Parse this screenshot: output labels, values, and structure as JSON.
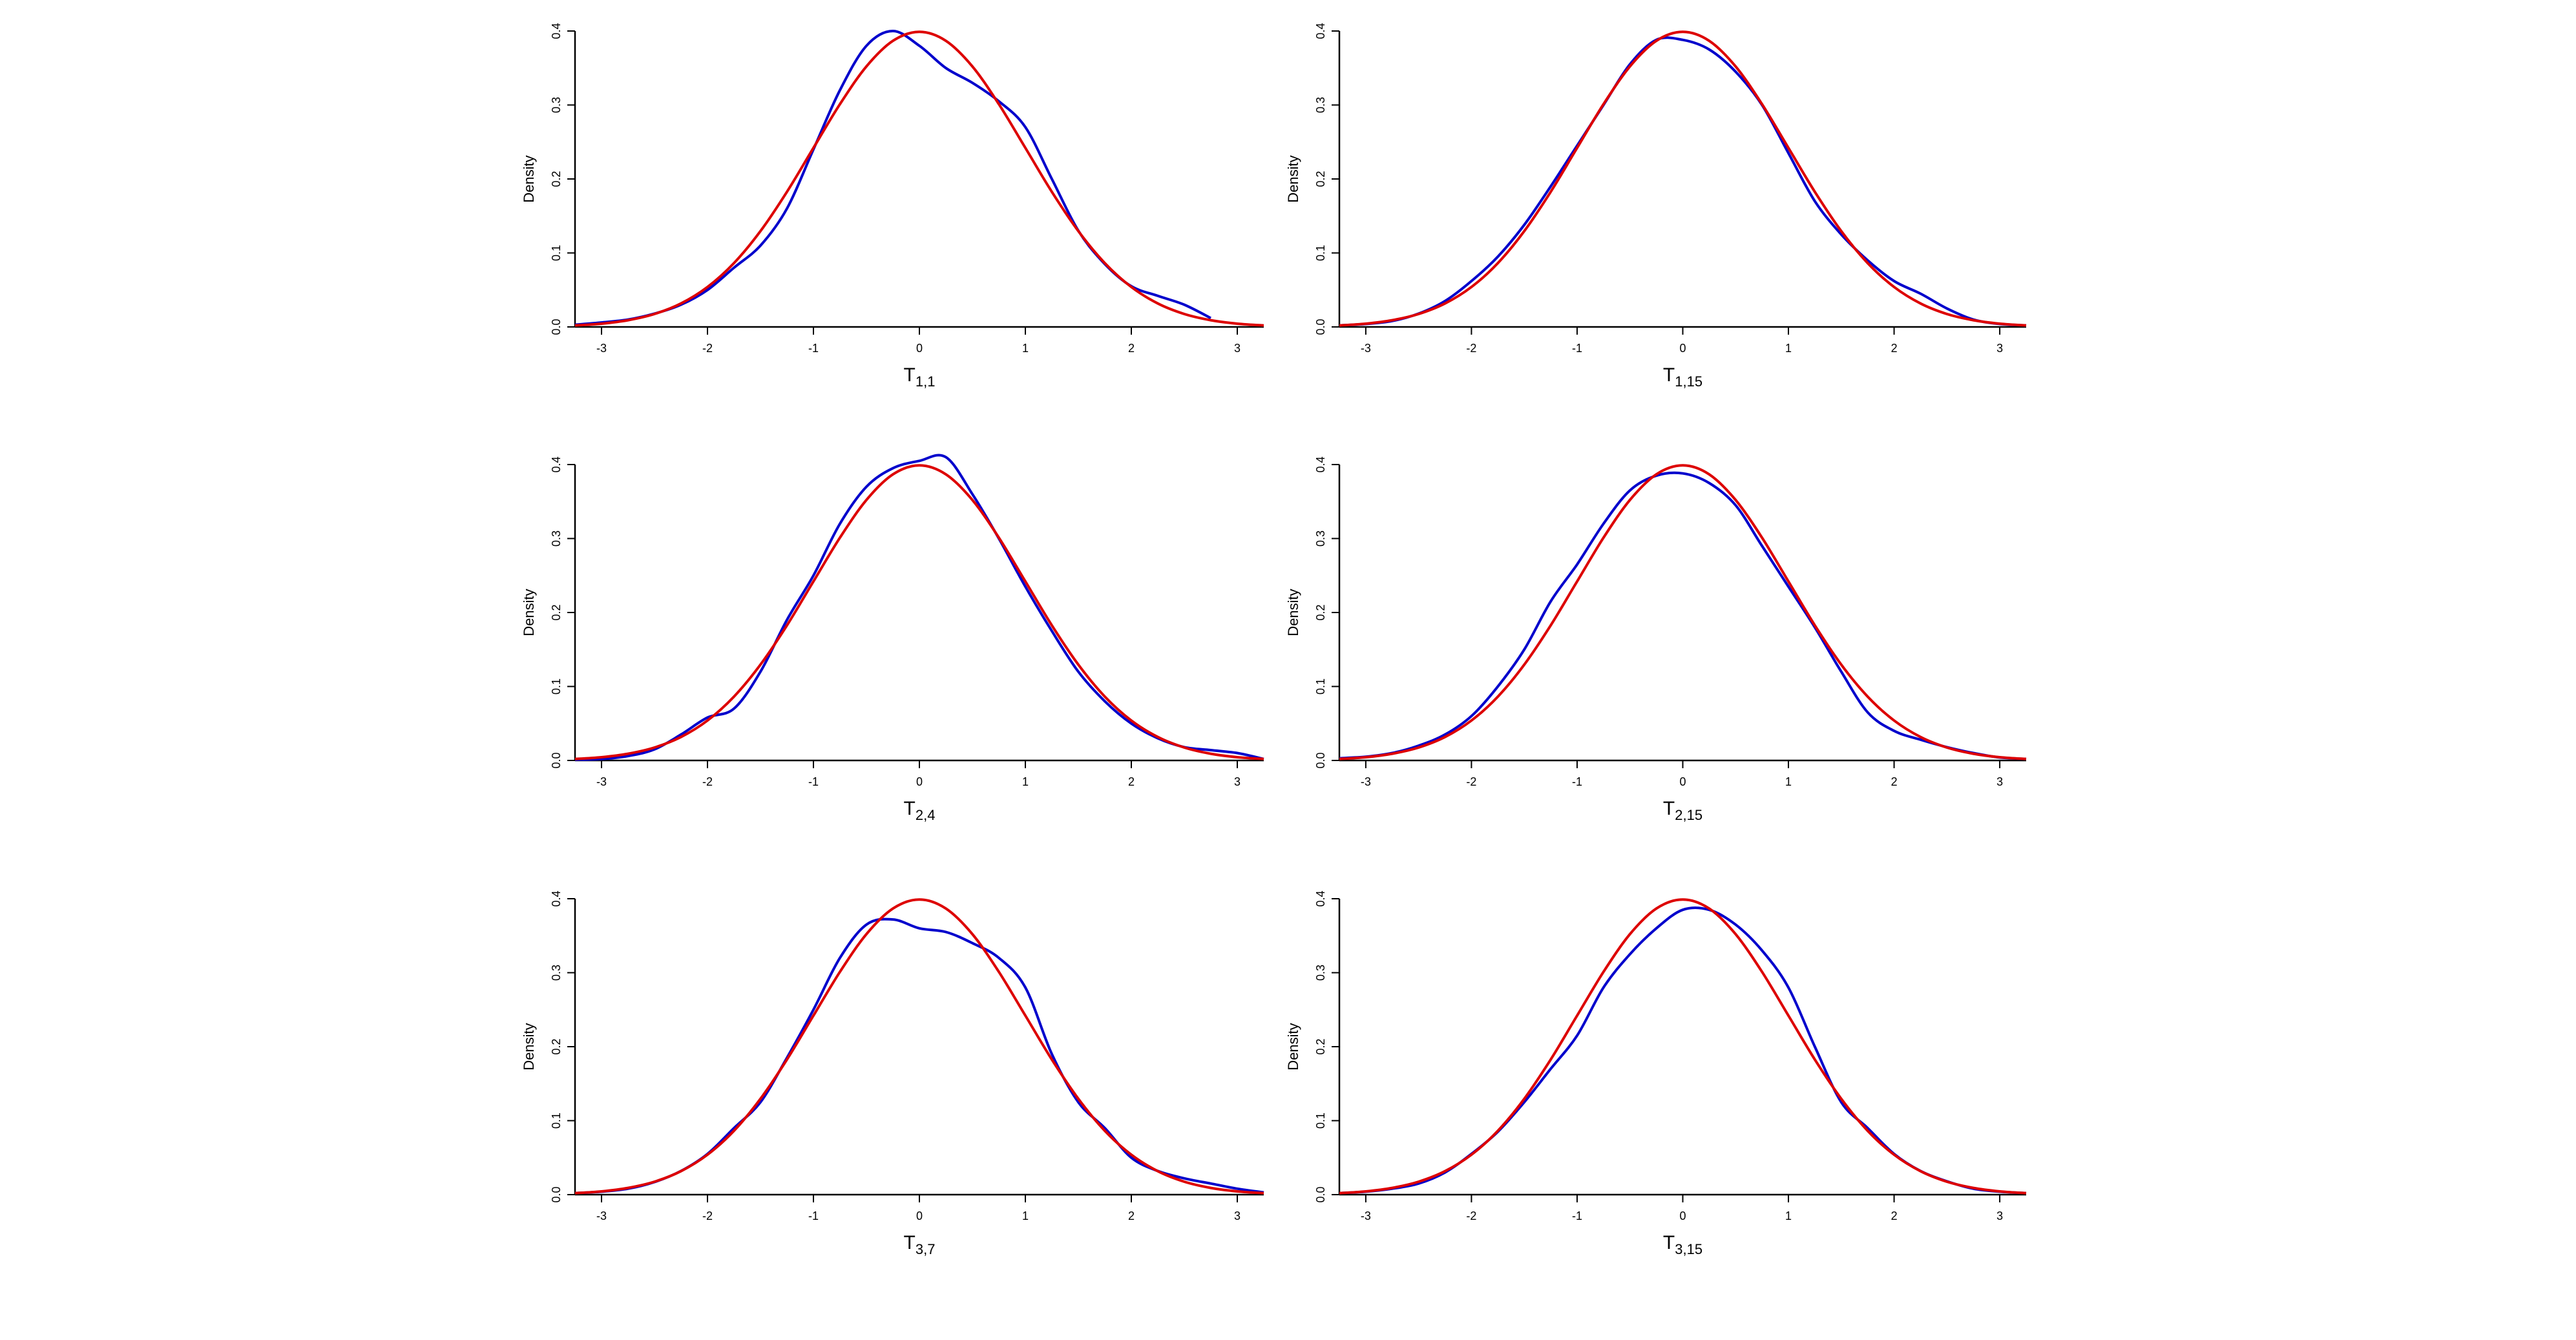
{
  "chart_data": [
    {
      "type": "line",
      "x_label": "T",
      "x_label_subscript": "1,1",
      "y_label": "Density",
      "x": [
        -3.25,
        -3,
        -2.75,
        -2.5,
        -2.25,
        -2,
        -1.75,
        -1.5,
        -1.25,
        -1,
        -0.75,
        -0.5,
        -0.25,
        0,
        0.25,
        0.5,
        0.75,
        1,
        1.25,
        1.5,
        1.75,
        2,
        2.25,
        2.5,
        2.75,
        3,
        3.25
      ],
      "series": [
        {
          "color": "#0000cc",
          "values": [
            0.003,
            0.006,
            0.01,
            0.018,
            0.03,
            0.05,
            0.08,
            0.11,
            0.16,
            0.24,
            0.32,
            0.38,
            0.4,
            0.38,
            0.35,
            0.33,
            0.305,
            0.27,
            0.2,
            0.13,
            0.085,
            0.055,
            0.042,
            0.03,
            0.012,
            null,
            null
          ]
        },
        {
          "color": "#dd0000",
          "values": [
            0.002,
            0.0044,
            0.0091,
            0.0175,
            0.0317,
            0.054,
            0.0863,
            0.1295,
            0.1826,
            0.242,
            0.3011,
            0.3521,
            0.3867,
            0.3989,
            0.3867,
            0.3521,
            0.3011,
            0.242,
            0.1826,
            0.1295,
            0.0863,
            0.054,
            0.0317,
            0.0175,
            0.0091,
            0.0044,
            0.002
          ]
        }
      ],
      "xlim": [
        -3.25,
        3.25
      ],
      "xticks": [
        -3,
        -2,
        -1,
        0,
        1,
        2,
        3
      ],
      "ylim": [
        0,
        0.4
      ],
      "yticks": [
        {
          "value": 0,
          "label": "0.0"
        },
        0.1,
        0.2,
        0.3,
        0.4
      ]
    },
    {
      "type": "line",
      "x_label": "T",
      "x_label_subscript": "1,15",
      "y_label": "Density",
      "x": [
        -3.25,
        -3,
        -2.75,
        -2.5,
        -2.25,
        -2,
        -1.75,
        -1.5,
        -1.25,
        -1,
        -0.75,
        -0.5,
        -0.25,
        0,
        0.25,
        0.5,
        0.75,
        1,
        1.25,
        1.5,
        1.75,
        2,
        2.25,
        2.5,
        2.75,
        3,
        3.25
      ],
      "series": [
        {
          "color": "#0000cc",
          "values": [
            0.002,
            0.004,
            0.008,
            0.018,
            0.035,
            0.062,
            0.095,
            0.138,
            0.19,
            0.245,
            0.3,
            0.355,
            0.388,
            0.388,
            0.375,
            0.345,
            0.3,
            0.235,
            0.17,
            0.125,
            0.09,
            0.062,
            0.045,
            0.025,
            0.01,
            0.004,
            0.002
          ]
        },
        {
          "color": "#dd0000",
          "values": [
            0.002,
            0.0044,
            0.0091,
            0.0175,
            0.0317,
            0.054,
            0.0863,
            0.1295,
            0.1826,
            0.242,
            0.3011,
            0.3521,
            0.3867,
            0.3989,
            0.3867,
            0.3521,
            0.3011,
            0.242,
            0.1826,
            0.1295,
            0.0863,
            0.054,
            0.0317,
            0.0175,
            0.0091,
            0.0044,
            0.002
          ]
        }
      ],
      "xlim": [
        -3.25,
        3.25
      ],
      "xticks": [
        -3,
        -2,
        -1,
        0,
        1,
        2,
        3
      ],
      "ylim": [
        0,
        0.4
      ],
      "yticks": [
        {
          "value": 0,
          "label": "0.0"
        },
        0.1,
        0.2,
        0.3,
        0.4
      ]
    },
    {
      "type": "line",
      "x_label": "T",
      "x_label_subscript": "2,4",
      "y_label": "Density",
      "x": [
        -3.25,
        -3,
        -2.75,
        -2.5,
        -2.25,
        -2,
        -1.75,
        -1.5,
        -1.25,
        -1,
        -0.75,
        -0.5,
        -0.25,
        0,
        0.25,
        0.5,
        0.75,
        1,
        1.25,
        1.5,
        1.75,
        2,
        2.25,
        2.5,
        2.75,
        3,
        3.25
      ],
      "series": [
        {
          "color": "#0000cc",
          "values": [
            0.001,
            0.002,
            0.006,
            0.015,
            0.035,
            0.058,
            0.07,
            0.12,
            0.19,
            0.25,
            0.32,
            0.37,
            0.395,
            0.405,
            0.41,
            0.36,
            0.3,
            0.235,
            0.175,
            0.12,
            0.08,
            0.05,
            0.03,
            0.018,
            0.014,
            0.01,
            0.002
          ]
        },
        {
          "color": "#dd0000",
          "values": [
            0.002,
            0.0044,
            0.0091,
            0.0175,
            0.0317,
            0.054,
            0.0863,
            0.1295,
            0.1826,
            0.242,
            0.3011,
            0.3521,
            0.3867,
            0.3989,
            0.3867,
            0.3521,
            0.3011,
            0.242,
            0.1826,
            0.1295,
            0.0863,
            0.054,
            0.0317,
            0.0175,
            0.0091,
            0.0044,
            0.002
          ]
        }
      ],
      "xlim": [
        -3.25,
        3.25
      ],
      "xticks": [
        -3,
        -2,
        -1,
        0,
        1,
        2,
        3
      ],
      "ylim": [
        0,
        0.4
      ],
      "yticks": [
        {
          "value": 0,
          "label": "0.0"
        },
        0.1,
        0.2,
        0.3,
        0.4
      ]
    },
    {
      "type": "line",
      "x_label": "T",
      "x_label_subscript": "2,15",
      "y_label": "Density",
      "x": [
        -3.25,
        -3,
        -2.75,
        -2.5,
        -2.25,
        -2,
        -1.75,
        -1.5,
        -1.25,
        -1,
        -0.75,
        -0.5,
        -0.25,
        0,
        0.25,
        0.5,
        0.75,
        1,
        1.25,
        1.5,
        1.75,
        2,
        2.25,
        2.5,
        2.75,
        3,
        3.25
      ],
      "series": [
        {
          "color": "#0000cc",
          "values": [
            0.003,
            0.005,
            0.01,
            0.02,
            0.035,
            0.06,
            0.1,
            0.15,
            0.215,
            0.265,
            0.32,
            0.365,
            0.385,
            0.388,
            0.375,
            0.345,
            0.29,
            0.235,
            0.18,
            0.12,
            0.065,
            0.04,
            0.028,
            0.018,
            0.01,
            0.004,
            0.002
          ]
        },
        {
          "color": "#dd0000",
          "values": [
            0.002,
            0.0044,
            0.0091,
            0.0175,
            0.0317,
            0.054,
            0.0863,
            0.1295,
            0.1826,
            0.242,
            0.3011,
            0.3521,
            0.3867,
            0.3989,
            0.3867,
            0.3521,
            0.3011,
            0.242,
            0.1826,
            0.1295,
            0.0863,
            0.054,
            0.0317,
            0.0175,
            0.0091,
            0.0044,
            0.002
          ]
        }
      ],
      "xlim": [
        -3.25,
        3.25
      ],
      "xticks": [
        -3,
        -2,
        -1,
        0,
        1,
        2,
        3
      ],
      "ylim": [
        0,
        0.4
      ],
      "yticks": [
        {
          "value": 0,
          "label": "0.0"
        },
        0.1,
        0.2,
        0.3,
        0.4
      ]
    },
    {
      "type": "line",
      "x_label": "T",
      "x_label_subscript": "3,7",
      "y_label": "Density",
      "x": [
        -3.25,
        -3,
        -2.75,
        -2.5,
        -2.25,
        -2,
        -1.75,
        -1.5,
        -1.25,
        -1,
        -0.75,
        -0.5,
        -0.25,
        0,
        0.25,
        0.5,
        0.75,
        1,
        1.25,
        1.5,
        1.75,
        2,
        2.25,
        2.5,
        2.75,
        3,
        3.25
      ],
      "series": [
        {
          "color": "#0000cc",
          "values": [
            0.002,
            0.004,
            0.008,
            0.017,
            0.032,
            0.055,
            0.09,
            0.125,
            0.185,
            0.25,
            0.32,
            0.365,
            0.372,
            0.36,
            0.355,
            0.34,
            0.32,
            0.28,
            0.19,
            0.125,
            0.09,
            0.05,
            0.032,
            0.022,
            0.015,
            0.008,
            0.003
          ]
        },
        {
          "color": "#dd0000",
          "values": [
            0.002,
            0.0044,
            0.0091,
            0.0175,
            0.0317,
            0.054,
            0.0863,
            0.1295,
            0.1826,
            0.242,
            0.3011,
            0.3521,
            0.3867,
            0.3989,
            0.3867,
            0.3521,
            0.3011,
            0.242,
            0.1826,
            0.1295,
            0.0863,
            0.054,
            0.0317,
            0.0175,
            0.0091,
            0.0044,
            0.002
          ]
        }
      ],
      "xlim": [
        -3.25,
        3.25
      ],
      "xticks": [
        -3,
        -2,
        -1,
        0,
        1,
        2,
        3
      ],
      "ylim": [
        0,
        0.4
      ],
      "yticks": [
        {
          "value": 0,
          "label": "0.0"
        },
        0.1,
        0.2,
        0.3,
        0.4
      ]
    },
    {
      "type": "line",
      "x_label": "T",
      "x_label_subscript": "3,15",
      "y_label": "Density",
      "x": [
        -3.25,
        -3,
        -2.75,
        -2.5,
        -2.25,
        -2,
        -1.75,
        -1.5,
        -1.25,
        -1,
        -0.75,
        -0.5,
        -0.25,
        0,
        0.25,
        0.5,
        0.75,
        1,
        1.25,
        1.5,
        1.75,
        2,
        2.25,
        2.5,
        2.75,
        3,
        3.25
      ],
      "series": [
        {
          "color": "#0000cc",
          "values": [
            0.002,
            0.004,
            0.008,
            0.015,
            0.03,
            0.055,
            0.085,
            0.125,
            0.17,
            0.215,
            0.28,
            0.325,
            0.36,
            0.385,
            0.385,
            0.365,
            0.33,
            0.28,
            0.2,
            0.125,
            0.09,
            0.055,
            0.032,
            0.018,
            0.008,
            0.004,
            0.002
          ]
        },
        {
          "color": "#dd0000",
          "values": [
            0.002,
            0.0044,
            0.0091,
            0.0175,
            0.0317,
            0.054,
            0.0863,
            0.1295,
            0.1826,
            0.242,
            0.3011,
            0.3521,
            0.3867,
            0.3989,
            0.3867,
            0.3521,
            0.3011,
            0.242,
            0.1826,
            0.1295,
            0.0863,
            0.054,
            0.0317,
            0.0175,
            0.0091,
            0.0044,
            0.002
          ]
        }
      ],
      "xlim": [
        -3.25,
        3.25
      ],
      "xticks": [
        -3,
        -2,
        -1,
        0,
        1,
        2,
        3
      ],
      "ylim": [
        0,
        0.4
      ],
      "yticks": [
        {
          "value": 0,
          "label": "0.0"
        },
        0.1,
        0.2,
        0.3,
        0.4
      ]
    }
  ]
}
